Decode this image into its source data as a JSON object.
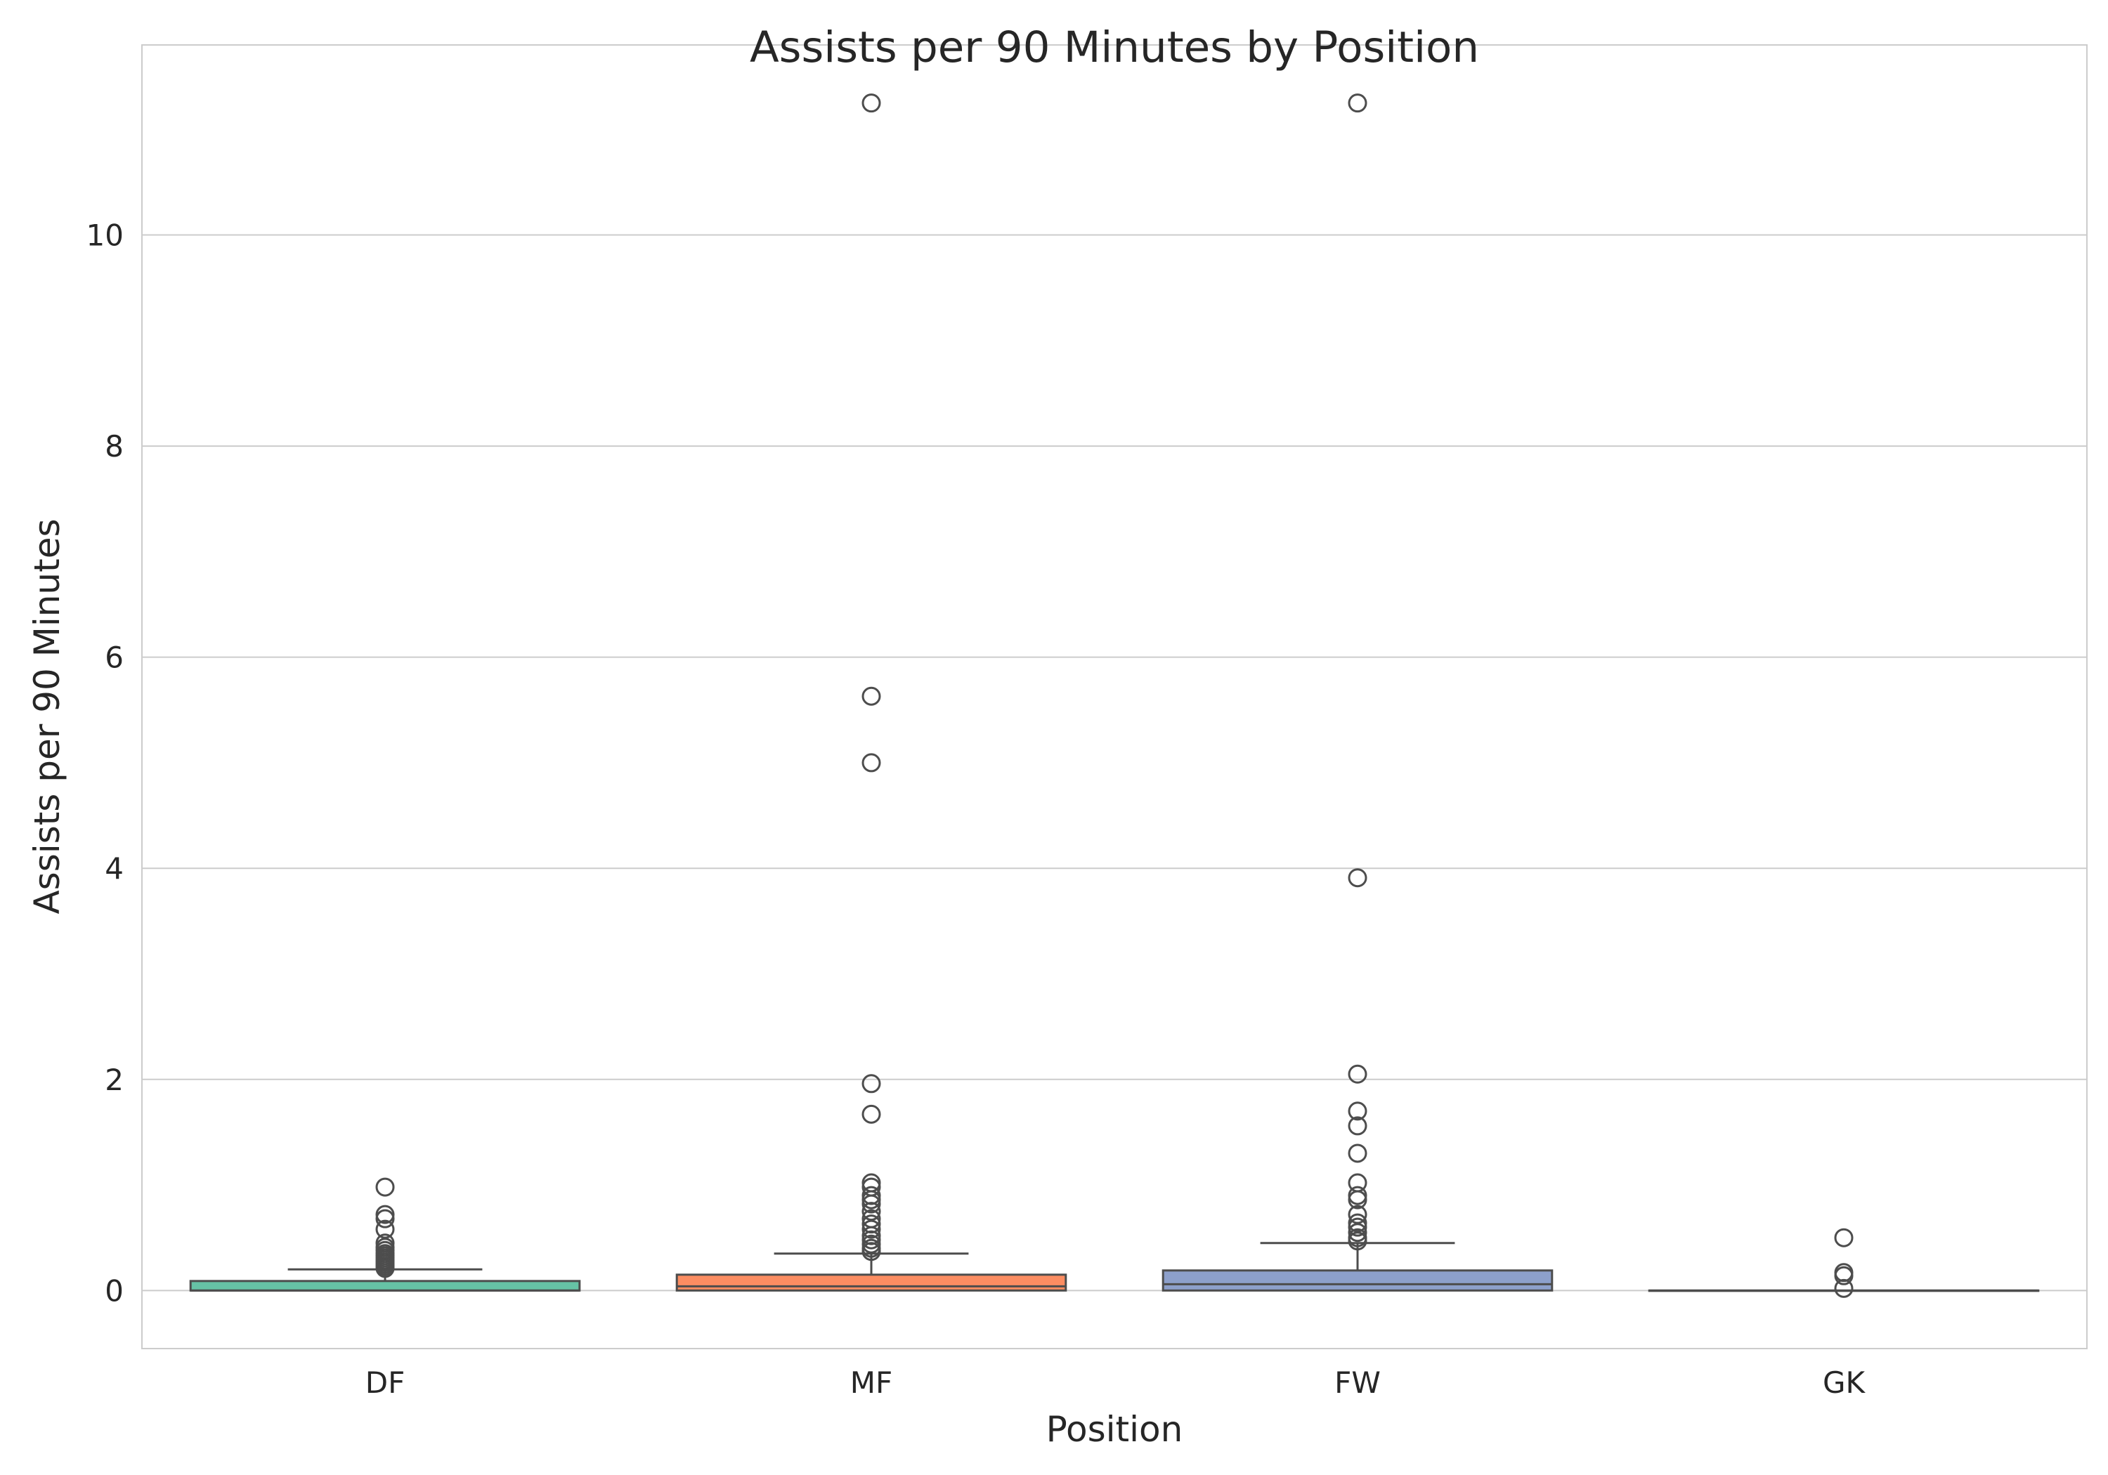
{
  "chart_data": {
    "type": "box",
    "title": "Assists per 90 Minutes by Position",
    "xlabel": "Position",
    "ylabel": "Assists per 90 Minutes",
    "categories": [
      "DF",
      "MF",
      "FW",
      "GK"
    ],
    "ylim": [
      -0.55,
      11.8
    ],
    "yticks": [
      0,
      2,
      4,
      6,
      8,
      10
    ],
    "grid": "horizontal",
    "colors": {
      "DF": "#66c2a5",
      "MF": "#fc8d62",
      "FW": "#8da0cb",
      "GK": "#e78ac3"
    },
    "boxes": [
      {
        "category": "DF",
        "min": 0.0,
        "q1": 0.0,
        "median": 0.0,
        "q3": 0.09,
        "whisker_high": 0.2,
        "outliers": [
          0.98,
          0.72,
          0.68,
          0.58,
          0.45,
          0.41,
          0.38,
          0.35,
          0.33,
          0.31,
          0.29,
          0.27,
          0.25,
          0.23,
          0.21
        ]
      },
      {
        "category": "MF",
        "min": 0.0,
        "q1": 0.0,
        "median": 0.04,
        "q3": 0.15,
        "whisker_high": 0.35,
        "outliers": [
          11.25,
          5.63,
          5.0,
          1.96,
          1.67,
          1.02,
          0.98,
          0.9,
          0.86,
          0.82,
          0.75,
          0.68,
          0.63,
          0.58,
          0.52,
          0.48,
          0.44,
          0.4,
          0.37
        ]
      },
      {
        "category": "FW",
        "min": 0.0,
        "q1": 0.0,
        "median": 0.06,
        "q3": 0.19,
        "whisker_high": 0.45,
        "outliers": [
          11.25,
          3.91,
          2.05,
          1.7,
          1.56,
          1.3,
          1.02,
          0.9,
          0.86,
          0.72,
          0.64,
          0.6,
          0.55,
          0.5,
          0.47
        ]
      },
      {
        "category": "GK",
        "min": 0.0,
        "q1": 0.0,
        "median": 0.0,
        "q3": 0.0,
        "whisker_high": 0.0,
        "outliers": [
          0.5,
          0.17,
          0.14,
          0.02
        ]
      }
    ]
  }
}
